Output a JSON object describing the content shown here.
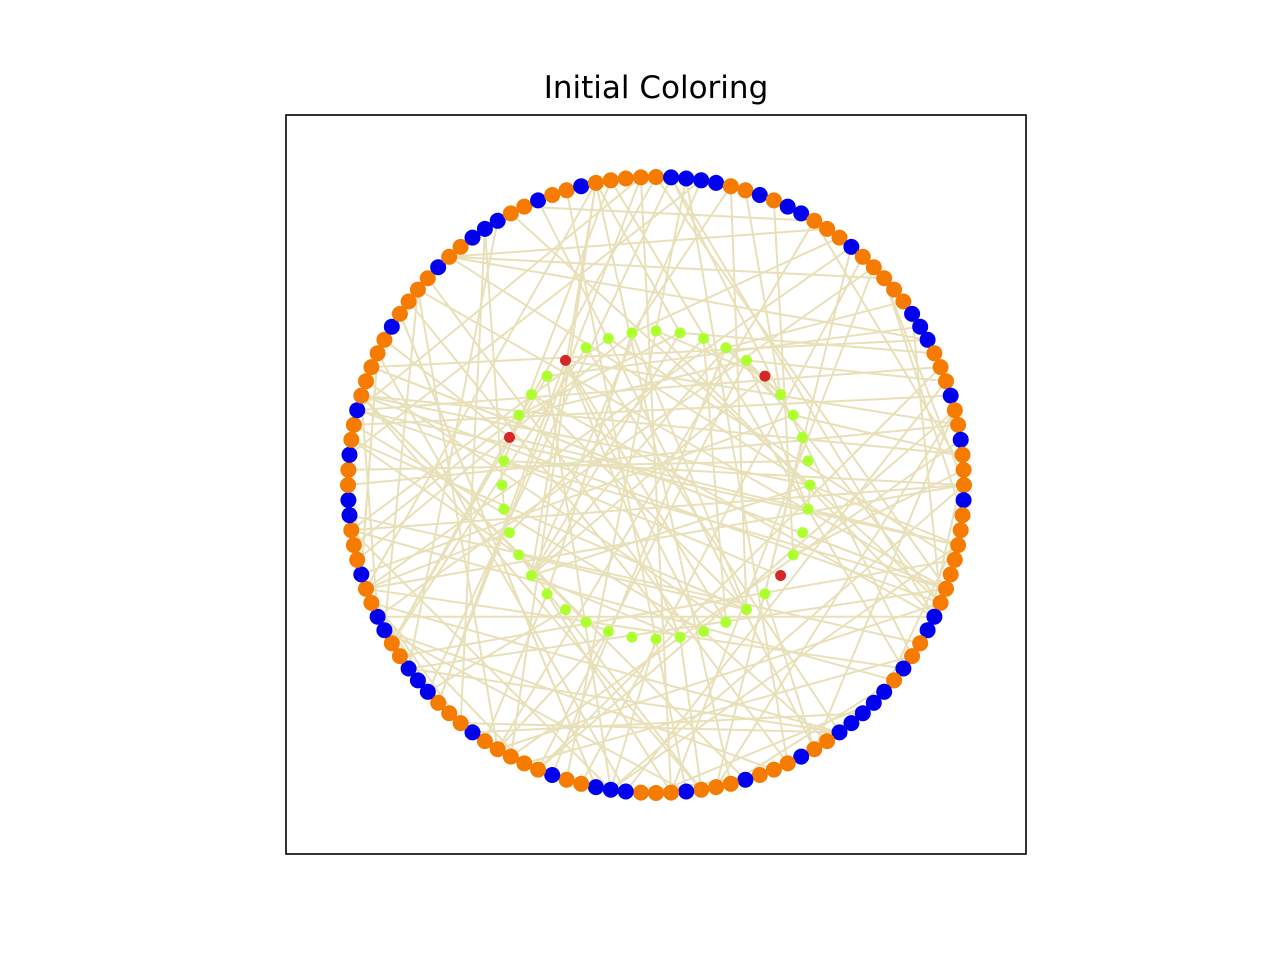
{
  "title": "Initial Coloring",
  "colors": {
    "outer_orange": "#f57c00",
    "outer_blue": "#0000ee",
    "inner_green": "#adff2f",
    "inner_red": "#d62728",
    "edge": "#e8e0b8",
    "frame": "#000000"
  },
  "graph": {
    "outer_ring": {
      "node_count": 128,
      "node_colors": [
        "orange",
        "blue",
        "blue",
        "blue",
        "blue",
        "orange",
        "orange",
        "blue",
        "orange",
        "blue",
        "blue",
        "orange",
        "orange",
        "orange",
        "blue",
        "orange",
        "orange",
        "orange",
        "orange",
        "orange",
        "blue",
        "blue",
        "blue",
        "orange",
        "orange",
        "orange",
        "blue",
        "orange",
        "orange",
        "blue",
        "orange",
        "orange",
        "orange",
        "blue",
        "orange",
        "orange",
        "orange",
        "orange",
        "orange",
        "orange",
        "orange",
        "blue",
        "blue",
        "orange",
        "orange",
        "blue",
        "orange",
        "blue",
        "blue",
        "blue",
        "blue",
        "blue",
        "orange",
        "orange",
        "blue",
        "orange",
        "orange",
        "orange",
        "blue",
        "orange",
        "orange",
        "orange",
        "blue",
        "orange",
        "orange",
        "orange",
        "blue",
        "blue",
        "blue",
        "orange",
        "orange",
        "blue",
        "orange",
        "orange",
        "orange",
        "orange",
        "orange",
        "blue",
        "orange",
        "orange",
        "orange",
        "blue",
        "blue",
        "blue",
        "orange",
        "orange",
        "blue",
        "blue",
        "orange",
        "orange",
        "blue",
        "orange",
        "orange",
        "orange",
        "blue",
        "blue",
        "orange",
        "orange",
        "blue",
        "orange",
        "orange",
        "blue",
        "orange",
        "orange",
        "orange",
        "orange",
        "orange",
        "blue",
        "orange",
        "orange",
        "orange",
        "orange",
        "blue",
        "orange",
        "orange",
        "blue",
        "blue",
        "blue",
        "orange",
        "orange",
        "blue",
        "orange",
        "orange",
        "blue",
        "orange",
        "orange",
        "orange",
        "orange"
      ]
    },
    "inner_ring": {
      "node_count": 40,
      "red_nodes": [
        5,
        14,
        32,
        36
      ]
    },
    "edge_count": 190
  }
}
